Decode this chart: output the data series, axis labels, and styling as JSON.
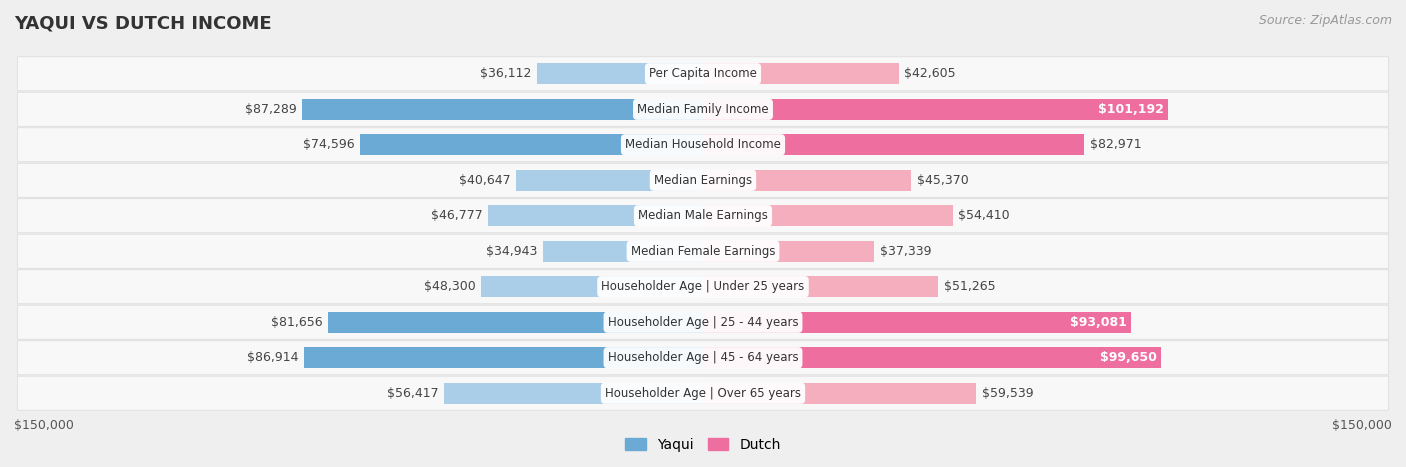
{
  "title": "YAQUI VS DUTCH INCOME",
  "source": "Source: ZipAtlas.com",
  "categories": [
    "Per Capita Income",
    "Median Family Income",
    "Median Household Income",
    "Median Earnings",
    "Median Male Earnings",
    "Median Female Earnings",
    "Householder Age | Under 25 years",
    "Householder Age | 25 - 44 years",
    "Householder Age | 45 - 64 years",
    "Householder Age | Over 65 years"
  ],
  "yaqui_values": [
    36112,
    87289,
    74596,
    40647,
    46777,
    34943,
    48300,
    81656,
    86914,
    56417
  ],
  "dutch_values": [
    42605,
    101192,
    82971,
    45370,
    54410,
    37339,
    51265,
    93081,
    99650,
    59539
  ],
  "yaqui_labels": [
    "$36,112",
    "$87,289",
    "$74,596",
    "$40,647",
    "$46,777",
    "$34,943",
    "$48,300",
    "$81,656",
    "$86,914",
    "$56,417"
  ],
  "dutch_labels": [
    "$42,605",
    "$101,192",
    "$82,971",
    "$45,370",
    "$54,410",
    "$37,339",
    "$51,265",
    "$93,081",
    "$99,650",
    "$59,539"
  ],
  "max_val": 150000,
  "yaqui_color_main": "#6AAAD4",
  "yaqui_color_light": "#AACDE8",
  "dutch_color_main": "#EF6EA0",
  "dutch_color_light": "#F4AEBE",
  "background_color": "#EFEFEF",
  "row_bg_color": "#F8F8F8",
  "row_border_color": "#DDDDDD",
  "legend_yaqui": "Yaqui",
  "legend_dutch": "Dutch",
  "axis_label_left": "$150,000",
  "axis_label_right": "$150,000",
  "title_fontsize": 13,
  "source_fontsize": 9,
  "bar_label_fontsize": 9,
  "cat_label_fontsize": 8.5,
  "white_label_threshold": 88000
}
